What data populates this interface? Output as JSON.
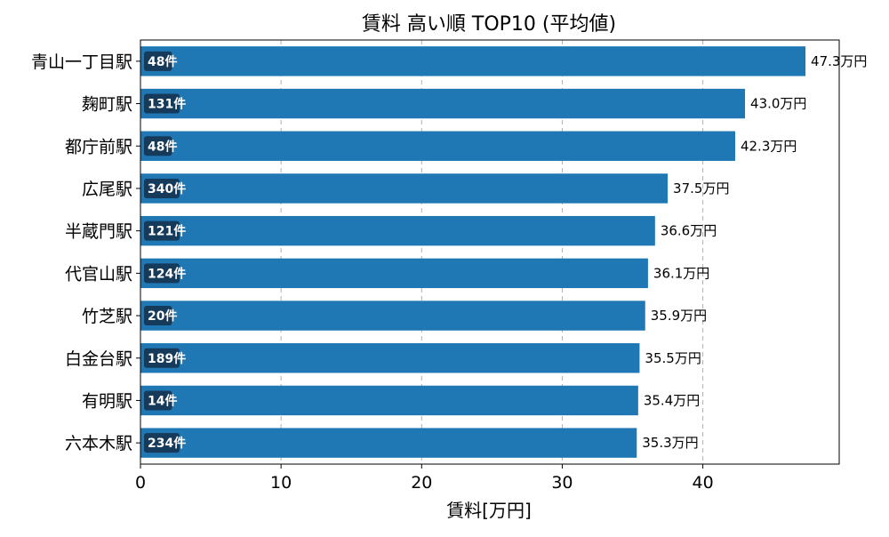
{
  "chart_data": {
    "type": "bar",
    "orientation": "horizontal",
    "title": "賃料 高い順 TOP10 (平均値)",
    "xlabel": "賃料[万円]",
    "ylabel": "",
    "xlim": [
      0,
      49.7
    ],
    "xticks": [
      0,
      10,
      20,
      30,
      40
    ],
    "grid": "vertical-dashed",
    "bar_color": "#1f77b4",
    "count_badge_color": "#163a5a",
    "categories": [
      "青山一丁目駅",
      "麹町駅",
      "都庁前駅",
      "広尾駅",
      "半蔵門駅",
      "代官山駅",
      "竹芝駅",
      "白金台駅",
      "有明駅",
      "六本木駅"
    ],
    "values": [
      47.3,
      43.0,
      42.3,
      37.5,
      36.6,
      36.1,
      35.9,
      35.5,
      35.4,
      35.3
    ],
    "value_labels": [
      "47.3万円",
      "43.0万円",
      "42.3万円",
      "37.5万円",
      "36.6万円",
      "36.1万円",
      "35.9万円",
      "35.5万円",
      "35.4万円",
      "35.3万円"
    ],
    "counts": [
      "48件",
      "131件",
      "48件",
      "340件",
      "121件",
      "124件",
      "20件",
      "189件",
      "14件",
      "234件"
    ]
  }
}
